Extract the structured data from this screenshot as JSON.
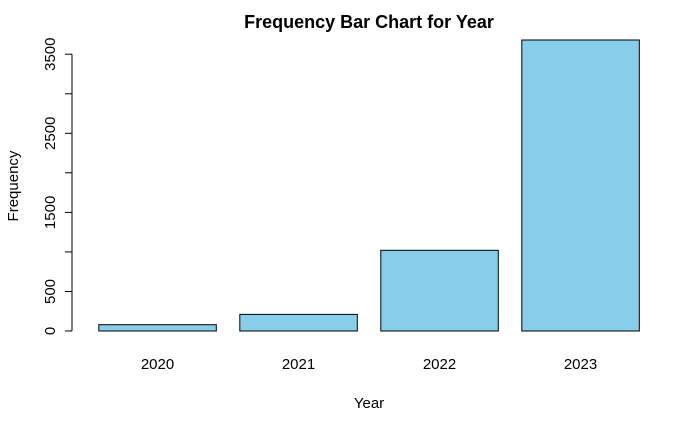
{
  "chart_data": {
    "type": "bar",
    "title": "Frequency Bar Chart for Year",
    "xlabel": "Year",
    "ylabel": "Frequency",
    "categories": [
      "2020",
      "2021",
      "2022",
      "2023"
    ],
    "values": [
      80,
      210,
      1020,
      3680
    ],
    "ylim": [
      0,
      3680
    ],
    "y_ticks": [
      0,
      500,
      1000,
      1500,
      2000,
      2500,
      3000,
      3500
    ],
    "y_tick_labels": [
      "0",
      "500",
      "",
      "1500",
      "",
      "2500",
      "",
      "3500"
    ],
    "bar_color": "#87CEEB",
    "grid": false
  }
}
